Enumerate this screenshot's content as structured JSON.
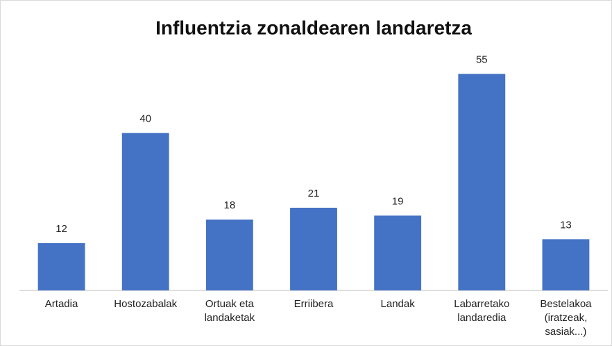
{
  "chart_data": {
    "type": "bar",
    "title": "Influentzia zonaldearen landaretza",
    "categories": [
      "Artadia",
      "Hostozabalak",
      "Ortuak eta landaketak",
      "Erriibera",
      "Landak",
      "Labarretako landaredia",
      "Bestelakoa (iratzeak, sasiak...)"
    ],
    "values": [
      12,
      40,
      18,
      21,
      19,
      55,
      13
    ],
    "color": "#4472c4",
    "ylim": [
      0,
      60
    ]
  }
}
